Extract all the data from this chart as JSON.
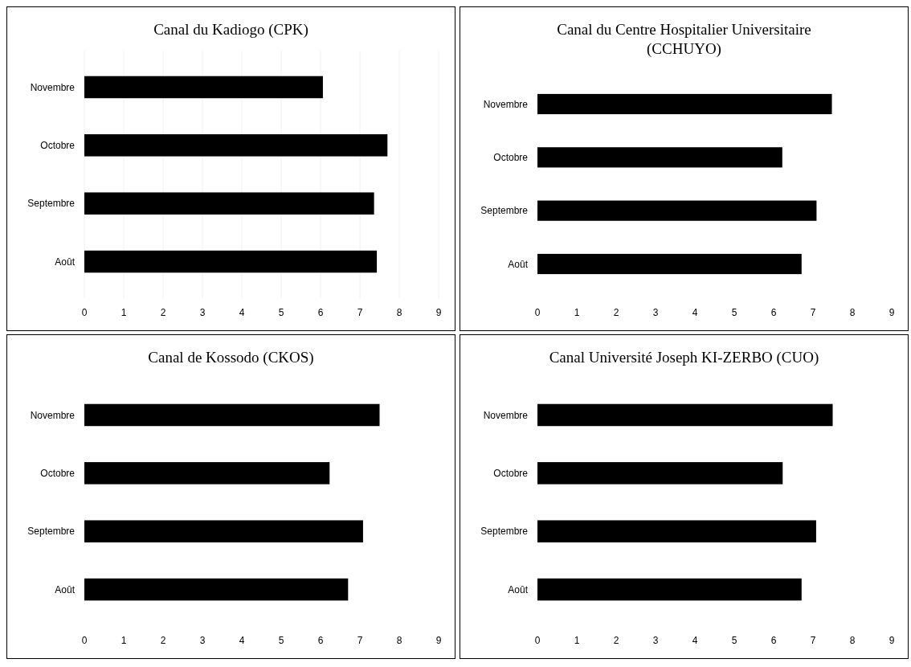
{
  "chart_data": [
    {
      "type": "bar",
      "orientation": "horizontal",
      "title": "Canal du Kadiogo (CPK)",
      "categories": [
        "Novembre",
        "Octobre",
        "Septembre",
        "Août"
      ],
      "values": [
        6.06,
        7.7,
        7.36,
        7.43
      ],
      "color": "#000000",
      "xlim": [
        0,
        9
      ],
      "xticks": [
        0,
        1,
        2,
        3,
        4,
        5,
        6,
        7,
        8,
        9
      ],
      "grid": "x"
    },
    {
      "type": "bar",
      "orientation": "horizontal",
      "title": "Canal du Centre Hospitalier Universitaire (CCHUYO)",
      "categories": [
        "Novembre",
        "Octobre",
        "Septembre",
        "Août"
      ],
      "values": [
        7.48,
        6.22,
        7.09,
        6.71
      ],
      "color": "#000000",
      "xlim": [
        0,
        9
      ],
      "xticks": [
        0,
        1,
        2,
        3,
        4,
        5,
        6,
        7,
        8,
        9
      ]
    },
    {
      "type": "bar",
      "orientation": "horizontal",
      "title": "Canal de Kossodo (CKOS)",
      "categories": [
        "Novembre",
        "Octobre",
        "Septembre",
        "Août"
      ],
      "values": [
        7.5,
        6.23,
        7.08,
        6.7
      ],
      "color": "#000000",
      "xlim": [
        0,
        9
      ],
      "xticks": [
        0,
        1,
        2,
        3,
        4,
        5,
        6,
        7,
        8,
        9
      ]
    },
    {
      "type": "bar",
      "orientation": "horizontal",
      "title": "Canal Université Joseph KI-ZERBO (CUO)",
      "categories": [
        "Novembre",
        "Octobre",
        "Septembre",
        "Août"
      ],
      "values": [
        7.5,
        6.23,
        7.08,
        6.71
      ],
      "color": "#000000",
      "xlim": [
        0,
        9
      ],
      "xticks": [
        0,
        1,
        2,
        3,
        4,
        5,
        6,
        7,
        8,
        9
      ]
    }
  ]
}
